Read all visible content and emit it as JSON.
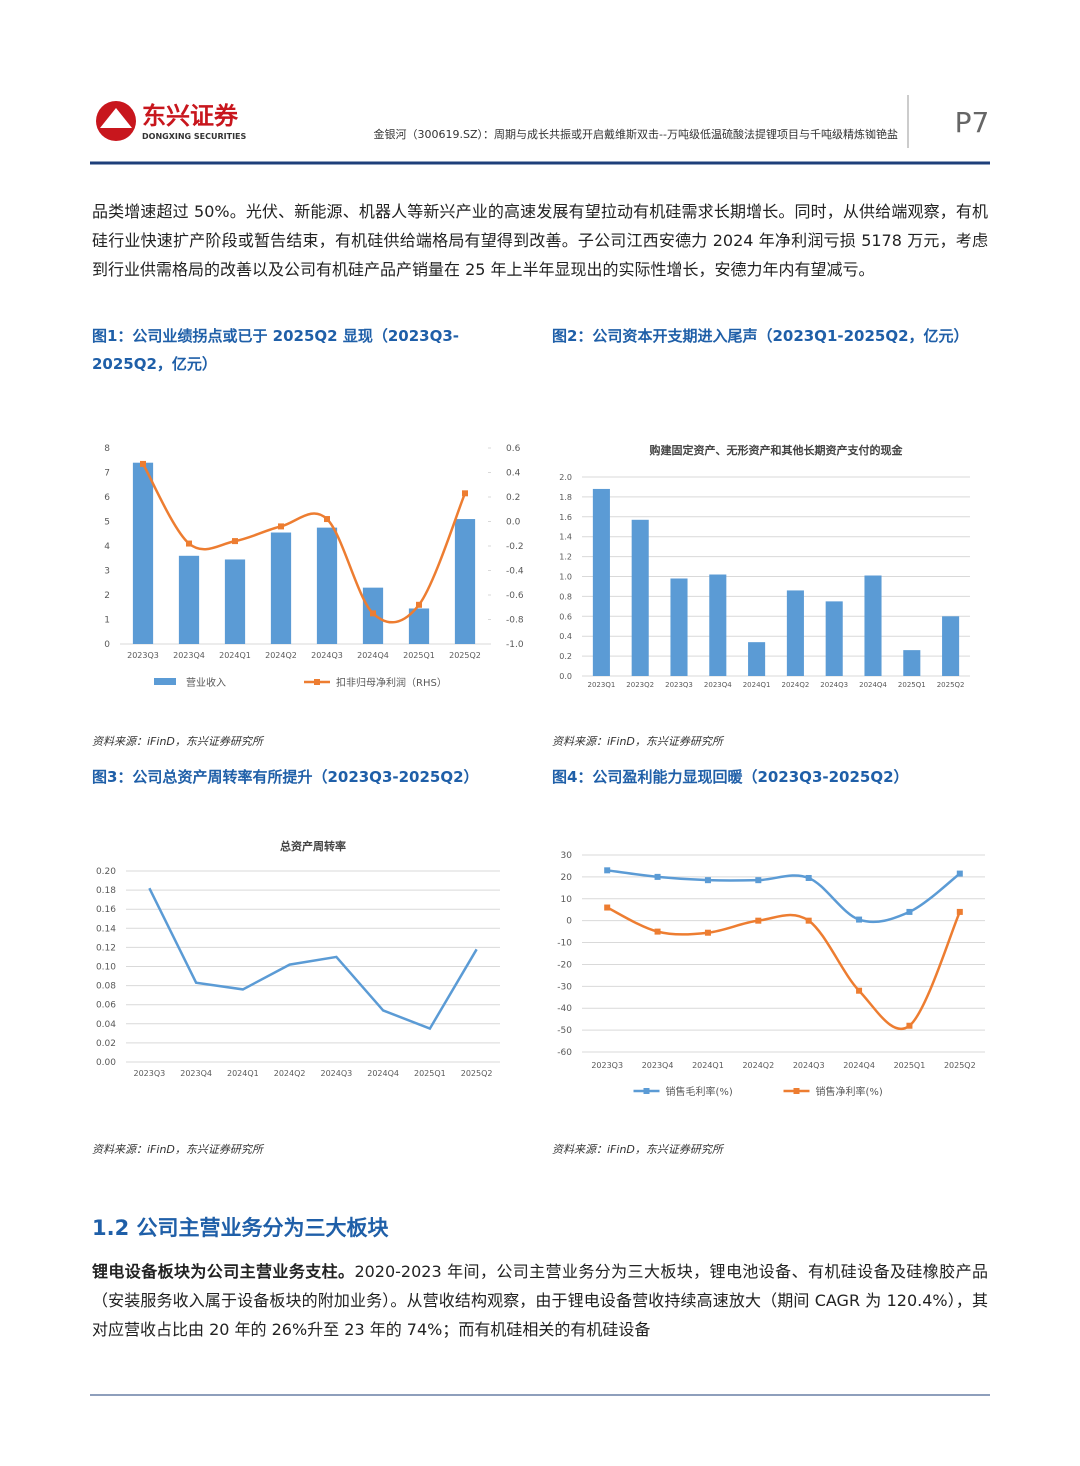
{
  "header": {
    "logo_cn": "东兴证券",
    "logo_en": "DONGXING SECURITIES",
    "subtitle": "金银河（300619.SZ）：周期与成长共振或开启戴维斯双击--万吨级低温硫酸法提锂项目与千吨级精炼铷铯盐",
    "page": "P7"
  },
  "paragraph_1": "品类增速超过 50%。光伏、新能源、机器人等新兴产业的高速发展有望拉动有机硅需求长期增长。同时，从供给端观察，有机硅行业快速扩产阶段或暂告结束，有机硅供给端格局有望得到改善。子公司江西安德力 2024 年净利润亏损 5178 万元，考虑到行业供需格局的改善以及公司有机硅产品产销量在 25 年上半年显现出的实际性增长，安德力年内有望减亏。",
  "figures": [
    {
      "caption": "图1：公司业绩拐点或已于 2025Q2 显现（2023Q3-2025Q2，亿元）",
      "source": "资料来源：iFinD，东兴证券研究所"
    },
    {
      "caption": "图2：公司资本开支期进入尾声（2023Q1-2025Q2，亿元）",
      "source": "资料来源：iFinD，东兴证券研究所"
    },
    {
      "caption": "图3：公司总资产周转率有所提升（2023Q3-2025Q2）",
      "source": "资料来源：iFinD，东兴证券研究所"
    },
    {
      "caption": "图4：公司盈利能力显现回暖（2023Q3-2025Q2）",
      "source": "资料来源：iFinD，东兴证券研究所"
    }
  ],
  "chart_data": [
    {
      "type": "combo",
      "categories": [
        "2023Q3",
        "2023Q4",
        "2024Q1",
        "2024Q2",
        "2024Q3",
        "2024Q4",
        "2025Q1",
        "2025Q2"
      ],
      "series": [
        {
          "name": "营业收入",
          "color": "#5b9bd5",
          "values": [
            7.4,
            3.6,
            3.45,
            4.55,
            4.75,
            2.3,
            1.45,
            5.1
          ]
        },
        {
          "name": "扣非归母净利润（RHS）",
          "color": "#ed7d31",
          "axis": "y2",
          "markers": true,
          "values": [
            0.47,
            -0.18,
            -0.16,
            -0.04,
            0.02,
            -0.75,
            -0.68,
            0.23
          ]
        }
      ],
      "ylim": [
        0,
        8
      ],
      "yticks": [
        0,
        1,
        2,
        3,
        4,
        5,
        6,
        7,
        8
      ],
      "y2lim": [
        -1.0,
        0.6
      ],
      "y2ticks": [
        {
          "value": -1.0,
          "label": "-1.0"
        },
        -0.8,
        -0.6,
        -0.4,
        -0.2,
        {
          "value": 0,
          "label": "0.0"
        },
        0.2,
        0.4,
        0.6
      ],
      "grid": false
    },
    {
      "type": "bar",
      "title": "购建固定资产、无形资产和其他长期资产支付的现金",
      "categories": [
        "2023Q1",
        "2023Q2",
        "2023Q3",
        "2023Q4",
        "2024Q1",
        "2024Q2",
        "2024Q3",
        "2024Q4",
        "2025Q1",
        "2025Q2"
      ],
      "series": [
        {
          "color": "#5b9bd5",
          "values": [
            1.88,
            1.57,
            0.98,
            1.02,
            0.34,
            0.86,
            0.75,
            1.01,
            0.26,
            0.6
          ]
        }
      ],
      "ylim": [
        0,
        2.0
      ],
      "yticks": [
        {
          "value": 0,
          "label": "0.0"
        },
        0.2,
        0.4,
        0.6,
        0.8,
        {
          "value": 1,
          "label": "1.0"
        },
        1.2,
        1.4,
        1.6,
        1.8,
        {
          "value": 2,
          "label": "2.0"
        }
      ],
      "grid": true
    },
    {
      "type": "line",
      "title": "总资产周转率",
      "categories": [
        "2023Q3",
        "2023Q4",
        "2024Q1",
        "2024Q2",
        "2024Q3",
        "2024Q4",
        "2025Q1",
        "2025Q2"
      ],
      "series": [
        {
          "color": "#5b9bd5",
          "values": [
            0.182,
            0.083,
            0.076,
            0.102,
            0.11,
            0.054,
            0.035,
            0.118
          ]
        }
      ],
      "ylim": [
        0,
        0.2
      ],
      "yticks": [
        {
          "value": 0,
          "label": "0.00"
        },
        {
          "value": 0.02,
          "label": "0.02"
        },
        {
          "value": 0.04,
          "label": "0.04"
        },
        {
          "value": 0.06,
          "label": "0.06"
        },
        {
          "value": 0.08,
          "label": "0.08"
        },
        {
          "value": 0.1,
          "label": "0.10"
        },
        {
          "value": 0.12,
          "label": "0.12"
        },
        {
          "value": 0.14,
          "label": "0.14"
        },
        {
          "value": 0.16,
          "label": "0.16"
        },
        {
          "value": 0.18,
          "label": "0.18"
        },
        {
          "value": 0.2,
          "label": "0.20"
        }
      ],
      "grid": true,
      "smooth": false
    },
    {
      "type": "line",
      "categories": [
        "2023Q3",
        "2023Q4",
        "2024Q1",
        "2024Q2",
        "2024Q3",
        "2024Q4",
        "2025Q1",
        "2025Q2"
      ],
      "series": [
        {
          "name": "销售毛利率(%)",
          "color": "#5b9bd5",
          "markers": true,
          "values": [
            23,
            20,
            18.5,
            18.5,
            19.5,
            0.5,
            4,
            21.5
          ]
        },
        {
          "name": "销售净利率(%)",
          "color": "#ed7d31",
          "markers": true,
          "values": [
            6,
            -5,
            -5.5,
            0,
            0,
            -32,
            -48,
            4
          ]
        }
      ],
      "ylim": [
        -60,
        30
      ],
      "yticks": [
        -60,
        -50,
        -40,
        -30,
        -20,
        -10,
        0,
        10,
        20,
        30
      ],
      "grid": true,
      "smooth": true
    }
  ],
  "section": {
    "heading": "1.2 公司主营业务分为三大板块",
    "lead": "锂电设备板块为公司主营业务支柱。",
    "text": "2020-2023 年间，公司主营业务分为三大板块，锂电池设备、有机硅设备及硅橡胶产品（安装服务收入属于设备板块的附加业务）。从营收结构观察，由于锂电设备营收持续高速放大（期间 CAGR 为 120.4%），其对应营收占比由 20 年的 26%升至 23 年的 74%；而有机硅相关的有机硅设备"
  }
}
